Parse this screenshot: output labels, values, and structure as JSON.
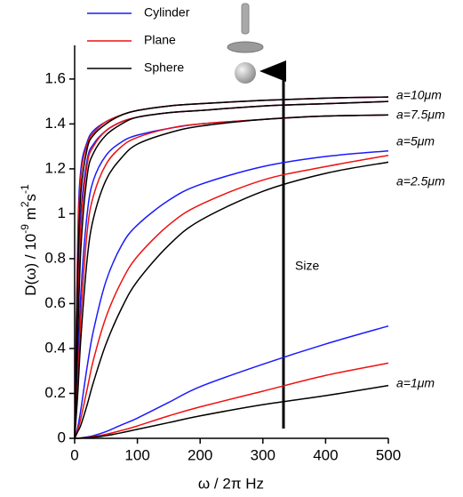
{
  "chart_data": {
    "type": "line",
    "x": [
      0,
      5,
      10,
      20,
      30,
      50,
      75,
      100,
      150,
      200,
      300,
      400,
      500
    ],
    "xlim": [
      0,
      500
    ],
    "xticks": [
      0,
      100,
      200,
      300,
      400,
      500
    ],
    "ylim": [
      0,
      1.75
    ],
    "yticks": [
      0,
      0.2,
      0.4,
      0.6,
      0.8,
      1,
      1.2,
      1.4,
      1.6
    ],
    "xlabel": "ω / 2π Hz",
    "ylabel": [
      "D(ω) / 10",
      "-9",
      " m",
      "2",
      "s",
      "-1"
    ],
    "size_labels": [
      "a=10μm",
      "a=7.5μm",
      "a=5μm",
      "a=2.5μm",
      "a=1μm"
    ],
    "arrow_label": "Size",
    "series": [
      {
        "name": "Cylinder",
        "color": "#1a1aff",
        "curves": [
          [
            0,
            0.9,
            1.2,
            1.32,
            1.37,
            1.41,
            1.44,
            1.46,
            1.48,
            1.49,
            1.505,
            1.515,
            1.52
          ],
          [
            0,
            0.6,
            1.0,
            1.24,
            1.31,
            1.37,
            1.41,
            1.43,
            1.45,
            1.46,
            1.48,
            1.49,
            1.5
          ],
          [
            0,
            0.3,
            0.65,
            1.0,
            1.15,
            1.26,
            1.32,
            1.35,
            1.38,
            1.4,
            1.42,
            1.435,
            1.44
          ],
          [
            0,
            0.05,
            0.13,
            0.32,
            0.48,
            0.7,
            0.86,
            0.95,
            1.06,
            1.13,
            1.21,
            1.255,
            1.28
          ],
          [
            0,
            0,
            0.002,
            0.006,
            0.012,
            0.03,
            0.06,
            0.09,
            0.16,
            0.23,
            0.33,
            0.42,
            0.5
          ]
        ]
      },
      {
        "name": "Plane",
        "color": "#ee1111",
        "curves": [
          [
            0,
            0.85,
            1.17,
            1.31,
            1.36,
            1.41,
            1.44,
            1.46,
            1.48,
            1.49,
            1.505,
            1.515,
            1.52
          ],
          [
            0,
            0.55,
            0.95,
            1.22,
            1.3,
            1.37,
            1.41,
            1.43,
            1.45,
            1.46,
            1.48,
            1.49,
            1.5
          ],
          [
            0,
            0.25,
            0.55,
            0.92,
            1.08,
            1.22,
            1.3,
            1.34,
            1.38,
            1.4,
            1.42,
            1.435,
            1.44
          ],
          [
            0,
            0.04,
            0.09,
            0.22,
            0.35,
            0.54,
            0.7,
            0.81,
            0.95,
            1.04,
            1.15,
            1.21,
            1.26
          ],
          [
            0,
            0,
            0.001,
            0.004,
            0.008,
            0.018,
            0.035,
            0.055,
            0.1,
            0.14,
            0.21,
            0.28,
            0.335
          ]
        ]
      },
      {
        "name": "Sphere",
        "color": "#000000",
        "curves": [
          [
            0,
            0.75,
            1.1,
            1.29,
            1.35,
            1.4,
            1.44,
            1.46,
            1.48,
            1.49,
            1.505,
            1.515,
            1.52
          ],
          [
            0,
            0.45,
            0.85,
            1.17,
            1.27,
            1.35,
            1.4,
            1.43,
            1.45,
            1.46,
            1.48,
            1.49,
            1.5
          ],
          [
            0,
            0.2,
            0.45,
            0.8,
            0.98,
            1.15,
            1.25,
            1.31,
            1.36,
            1.39,
            1.42,
            1.435,
            1.44
          ],
          [
            0,
            0.03,
            0.06,
            0.15,
            0.25,
            0.42,
            0.58,
            0.7,
            0.86,
            0.97,
            1.1,
            1.18,
            1.23
          ],
          [
            0,
            0,
            0.001,
            0.003,
            0.005,
            0.012,
            0.025,
            0.04,
            0.07,
            0.1,
            0.15,
            0.19,
            0.235
          ]
        ]
      }
    ]
  }
}
